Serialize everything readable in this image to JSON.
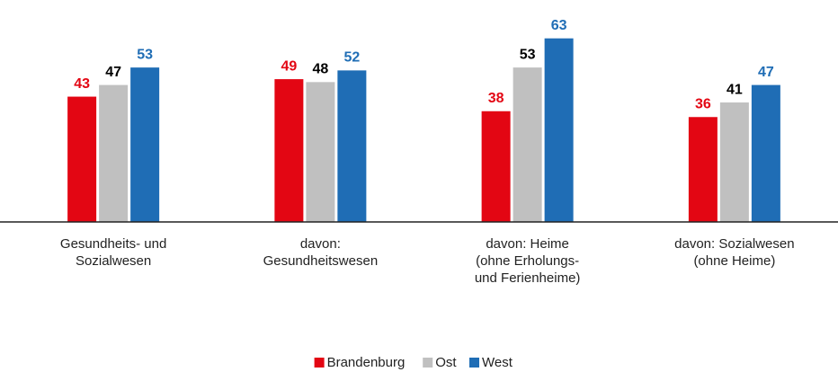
{
  "chart_data": {
    "type": "bar",
    "categories": [
      [
        "Gesundheits- und",
        "Sozialwesen"
      ],
      [
        "davon:",
        "Gesundheitswesen"
      ],
      [
        "davon: Heime",
        "(ohne Erholungs-",
        "und Ferienheime)"
      ],
      [
        "davon: Sozialwesen",
        "(ohne Heime)"
      ]
    ],
    "series": [
      {
        "name": "Brandenburg",
        "color": "#e30613",
        "label_color": "#e30613",
        "values": [
          43,
          49,
          38,
          36
        ]
      },
      {
        "name": "Ost",
        "color": "#c0c0c0",
        "label_color": "#000000",
        "values": [
          47,
          48,
          53,
          41
        ]
      },
      {
        "name": "West",
        "color": "#1f6db5",
        "label_color": "#1f6db5",
        "values": [
          53,
          52,
          63,
          47
        ]
      }
    ],
    "ylim": [
      0,
      70
    ],
    "legend": "bottom"
  }
}
